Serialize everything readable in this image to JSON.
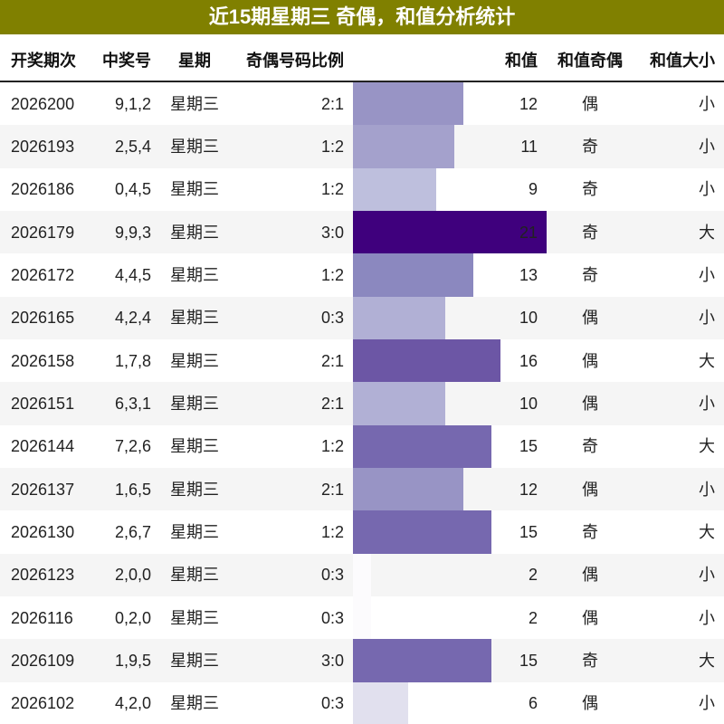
{
  "title": "近15期星期三 奇偶，和值分析统计",
  "table": {
    "headers": [
      "开奖期次",
      "中奖号",
      "星期",
      "奇偶号码比例",
      "和值",
      "和值奇偶",
      "和值大小"
    ],
    "rows": [
      [
        "2026200",
        "9,1,2",
        "星期三",
        "2:1",
        12,
        "偶",
        "小"
      ],
      [
        "2026193",
        "2,5,4",
        "星期三",
        "1:2",
        11,
        "奇",
        "小"
      ],
      [
        "2026186",
        "0,4,5",
        "星期三",
        "1:2",
        9,
        "奇",
        "小"
      ],
      [
        "2026179",
        "9,9,3",
        "星期三",
        "3:0",
        21,
        "奇",
        "大"
      ],
      [
        "2026172",
        "4,4,5",
        "星期三",
        "1:2",
        13,
        "奇",
        "小"
      ],
      [
        "2026165",
        "4,2,4",
        "星期三",
        "0:3",
        10,
        "偶",
        "小"
      ],
      [
        "2026158",
        "1,7,8",
        "星期三",
        "2:1",
        16,
        "偶",
        "大"
      ],
      [
        "2026151",
        "6,3,1",
        "星期三",
        "2:1",
        10,
        "偶",
        "小"
      ],
      [
        "2026144",
        "7,2,6",
        "星期三",
        "1:2",
        15,
        "奇",
        "大"
      ],
      [
        "2026137",
        "1,6,5",
        "星期三",
        "2:1",
        12,
        "偶",
        "小"
      ],
      [
        "2026130",
        "2,6,7",
        "星期三",
        "1:2",
        15,
        "奇",
        "大"
      ],
      [
        "2026123",
        "2,0,0",
        "星期三",
        "0:3",
        2,
        "偶",
        "小"
      ],
      [
        "2026116",
        "0,2,0",
        "星期三",
        "0:3",
        2,
        "偶",
        "小"
      ],
      [
        "2026109",
        "1,9,5",
        "星期三",
        "3:0",
        15,
        "奇",
        "大"
      ],
      [
        "2026102",
        "4,2,0",
        "星期三",
        "0:3",
        6,
        "偶",
        "小"
      ]
    ]
  }
}
